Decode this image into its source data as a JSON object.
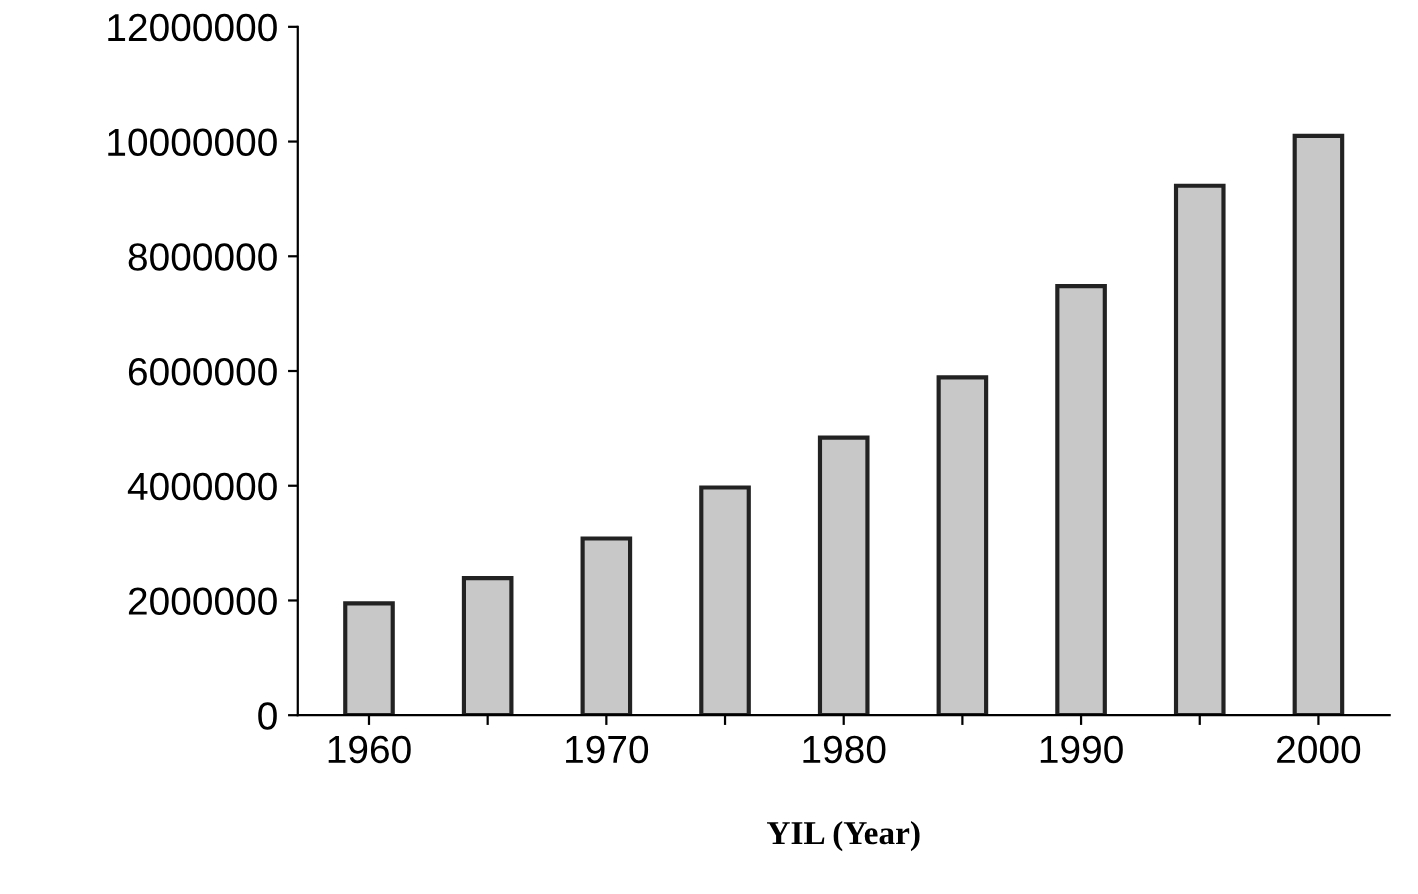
{
  "chart_data": {
    "type": "bar",
    "xlabel": "YIL (Year)",
    "categories": [
      "1960",
      null,
      "1970",
      null,
      "1980",
      null,
      "1990",
      null,
      "2000"
    ],
    "values": [
      1950000,
      2390000,
      3080000,
      3970000,
      4840000,
      5890000,
      7480000,
      9230000,
      10100000
    ],
    "color": "#c8c8c8",
    "ylim": [
      0,
      12000000
    ],
    "yticks": [
      0,
      2000000,
      4000000,
      6000000,
      8000000,
      10000000,
      12000000
    ],
    "grid": false,
    "legend": false
  }
}
